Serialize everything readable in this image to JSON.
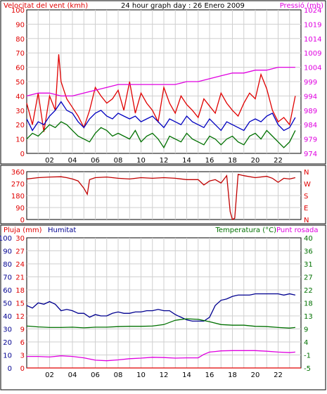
{
  "colors": {
    "background": "#ffffff",
    "plot_bg": "#ffffff",
    "grid": "#cfcfcf",
    "wind": "#e00000",
    "gust_avg": "#0000c0",
    "wind_avg": "#007000",
    "pressure": "#e000e0",
    "direction": "#c00000",
    "rain": "#e00000",
    "humidity": "#000090",
    "temperature": "#007000",
    "dewpoint": "#e000e0",
    "axis_left_red": "#e00000",
    "axis_right_magenta": "#e000e0",
    "axis_right_green": "#007000"
  },
  "chart_data": [
    {
      "id": "wind",
      "type": "line",
      "title": "24 hour graph day : 26 Enero 2009",
      "ylabel": "Velocitat del vent (kmh)",
      "ylabel2": "Pressió (mb)",
      "ylim": [
        0,
        100
      ],
      "y2lim": [
        974,
        1024
      ],
      "yticks": [
        "0",
        "10",
        "20",
        "30",
        "40",
        "50",
        "60",
        "70",
        "80",
        "90",
        "100"
      ],
      "y2ticks": [
        "974",
        "979",
        "984",
        "989",
        "994",
        "999",
        "1004",
        "1009",
        "1014",
        "1019",
        "1024"
      ],
      "xlim": [
        0,
        24
      ],
      "xticks": [
        "02",
        "04",
        "06",
        "08",
        "10",
        "12",
        "14",
        "16",
        "18",
        "20",
        "22"
      ],
      "grid": true,
      "series": [
        {
          "key": "wind",
          "color": "wind",
          "axis": "left",
          "x": [
            0,
            0.5,
            1,
            1.5,
            2,
            2.5,
            2.8,
            3,
            3.5,
            4,
            4.5,
            5,
            5.5,
            6,
            6.5,
            7,
            7.5,
            8,
            8.5,
            9,
            9.5,
            10,
            10.5,
            11,
            11.5,
            12,
            12.5,
            13,
            13.5,
            14,
            14.5,
            15,
            15.5,
            16,
            16.5,
            17,
            17.5,
            18,
            18.5,
            19,
            19.5,
            20,
            20.5,
            21,
            21.5,
            22,
            22.5,
            23,
            23.5
          ],
          "y": [
            35,
            20,
            42,
            15,
            40,
            30,
            69,
            50,
            38,
            32,
            26,
            18,
            30,
            46,
            40,
            35,
            38,
            44,
            30,
            50,
            28,
            42,
            35,
            30,
            22,
            46,
            35,
            28,
            40,
            34,
            30,
            25,
            38,
            33,
            28,
            42,
            35,
            30,
            26,
            35,
            42,
            38,
            55,
            45,
            30,
            22,
            25,
            20,
            40
          ]
        },
        {
          "key": "gust_avg",
          "color": "gust_avg",
          "axis": "left",
          "x": [
            0,
            0.5,
            1,
            1.5,
            2,
            2.5,
            3,
            3.5,
            4,
            4.5,
            5,
            5.5,
            6,
            6.5,
            7,
            7.5,
            8,
            8.5,
            9,
            9.5,
            10,
            10.5,
            11,
            11.5,
            12,
            12.5,
            13,
            13.5,
            14,
            14.5,
            15,
            15.5,
            16,
            16.5,
            17,
            17.5,
            18,
            18.5,
            19,
            19.5,
            20,
            20.5,
            21,
            21.5,
            22,
            22.5,
            23,
            23.5
          ],
          "y": [
            24,
            16,
            22,
            20,
            26,
            30,
            36,
            30,
            28,
            22,
            18,
            24,
            28,
            30,
            26,
            24,
            28,
            26,
            24,
            26,
            22,
            24,
            26,
            22,
            18,
            24,
            22,
            20,
            26,
            22,
            20,
            18,
            24,
            20,
            16,
            22,
            20,
            18,
            16,
            22,
            24,
            22,
            26,
            28,
            20,
            16,
            18,
            25
          ]
        },
        {
          "key": "wind_avg",
          "color": "wind_avg",
          "axis": "left",
          "x": [
            0,
            0.5,
            1,
            1.5,
            2,
            2.5,
            3,
            3.5,
            4,
            4.5,
            5,
            5.5,
            6,
            6.5,
            7,
            7.5,
            8,
            8.5,
            9,
            9.5,
            10,
            10.5,
            11,
            11.5,
            12,
            12.5,
            13,
            13.5,
            14,
            14.5,
            15,
            15.5,
            16,
            16.5,
            17,
            17.5,
            18,
            18.5,
            19,
            19.5,
            20,
            20.5,
            21,
            21.5,
            22,
            22.5,
            23,
            23.5
          ],
          "y": [
            10,
            14,
            12,
            16,
            20,
            18,
            22,
            20,
            16,
            12,
            10,
            8,
            14,
            18,
            16,
            12,
            14,
            12,
            10,
            16,
            8,
            12,
            14,
            10,
            4,
            12,
            10,
            8,
            14,
            10,
            8,
            6,
            12,
            10,
            6,
            10,
            12,
            8,
            6,
            12,
            14,
            10,
            16,
            12,
            8,
            4,
            8,
            16
          ]
        },
        {
          "key": "pressure",
          "color": "pressure",
          "axis": "right",
          "x": [
            0,
            1,
            2,
            3,
            4,
            5,
            6,
            7,
            8,
            9,
            10,
            11,
            12,
            13,
            14,
            15,
            16,
            17,
            18,
            19,
            20,
            21,
            22,
            23,
            23.5
          ],
          "y": [
            994,
            995,
            995,
            994,
            994,
            995,
            996,
            997,
            998,
            998,
            998,
            998,
            998,
            998,
            999,
            999,
            1000,
            1001,
            1002,
            1002,
            1003,
            1003,
            1004,
            1004,
            1004
          ]
        }
      ]
    },
    {
      "id": "direction",
      "type": "line",
      "ylim": [
        0,
        360
      ],
      "yticks": [
        "0",
        "90",
        "180",
        "270",
        "360"
      ],
      "y2ticks": [
        "N",
        "E",
        "S",
        "W",
        "N"
      ],
      "xlim": [
        0,
        24
      ],
      "grid": true,
      "series": [
        {
          "key": "direction",
          "color": "direction",
          "x": [
            0,
            1,
            2,
            3,
            3.5,
            4,
            4.5,
            5,
            5.3,
            5.5,
            6,
            7,
            8,
            9,
            10,
            11,
            12,
            13,
            14,
            15,
            15.5,
            16,
            16.5,
            17,
            17.5,
            17.8,
            18,
            18.2,
            18.5,
            19,
            20,
            21,
            21.5,
            22,
            22.5,
            23,
            23.5
          ],
          "y": [
            305,
            315,
            320,
            322,
            315,
            305,
            290,
            235,
            190,
            300,
            315,
            320,
            310,
            305,
            315,
            310,
            315,
            310,
            300,
            300,
            260,
            290,
            300,
            275,
            330,
            60,
            0,
            10,
            340,
            330,
            315,
            325,
            310,
            280,
            310,
            305,
            315
          ]
        }
      ]
    },
    {
      "id": "rain_temp",
      "type": "line",
      "ylabel": "Pluja (mm)",
      "ylabel_hum": "Humitat",
      "ylabel2": "Temperatura (°C)",
      "ylabel3": "Punt rosada",
      "ylim": [
        0,
        30
      ],
      "yticks": [
        "0",
        "3",
        "6",
        "9",
        "12",
        "15",
        "18",
        "21",
        "24",
        "27",
        "30"
      ],
      "yticks_hum": [
        "0",
        "10",
        "20",
        "30",
        "40",
        "50",
        "60",
        "70",
        "80",
        "90",
        "100"
      ],
      "y2lim": [
        -5,
        40
      ],
      "y2ticks": [
        "-5",
        "-1",
        "4",
        "9",
        "13",
        "18",
        "22",
        "27",
        "31",
        "36",
        "40"
      ],
      "xlim": [
        0,
        24
      ],
      "xticks": [
        "02",
        "04",
        "06",
        "08",
        "10",
        "12",
        "14",
        "16",
        "18",
        "20",
        "22"
      ],
      "grid": true,
      "series": [
        {
          "key": "rain",
          "color": "rain",
          "axis": "left",
          "x": [
            0,
            24
          ],
          "y": [
            0,
            0
          ]
        },
        {
          "key": "humidity",
          "color": "humidity",
          "axis": "hum",
          "x": [
            0,
            0.5,
            1,
            1.5,
            2,
            2.5,
            3,
            3.5,
            4,
            4.5,
            5,
            5.5,
            6,
            6.5,
            7,
            7.5,
            8,
            8.5,
            9,
            9.5,
            10,
            10.5,
            11,
            11.5,
            12,
            12.5,
            13,
            13.5,
            14,
            14.5,
            15,
            15.5,
            16,
            16.5,
            17,
            17.5,
            18,
            18.5,
            19,
            19.5,
            20,
            20.5,
            21,
            21.5,
            22,
            22.5,
            23,
            23.5
          ],
          "y": [
            48,
            46,
            50,
            49,
            51,
            49,
            44,
            45,
            44,
            42,
            42,
            39,
            41,
            40,
            40,
            42,
            43,
            42,
            42,
            43,
            43,
            44,
            44,
            45,
            44,
            44,
            41,
            39,
            37,
            36,
            36,
            36,
            39,
            48,
            52,
            53,
            55,
            56,
            56,
            56,
            57,
            57,
            57,
            57,
            57,
            56,
            57,
            56
          ]
        },
        {
          "key": "temperature",
          "color": "temperature",
          "axis": "right",
          "x": [
            0,
            1,
            2,
            3,
            4,
            5,
            6,
            7,
            8,
            9,
            10,
            11,
            12,
            13,
            14,
            15,
            16,
            17,
            18,
            19,
            20,
            21,
            22,
            23,
            23.5
          ],
          "y": [
            9.5,
            9.2,
            9.0,
            9.0,
            9.1,
            8.9,
            9.1,
            9.1,
            9.3,
            9.4,
            9.4,
            9.5,
            10.0,
            11.5,
            12.0,
            11.8,
            11.0,
            10.0,
            9.8,
            9.8,
            9.4,
            9.3,
            9.0,
            8.8,
            9.0
          ]
        },
        {
          "key": "dewpoint",
          "color": "dewpoint",
          "axis": "right",
          "x": [
            0,
            1,
            2,
            3,
            4,
            5,
            6,
            7,
            8,
            9,
            10,
            11,
            12,
            13,
            14,
            15,
            15.5,
            16,
            16.5,
            17,
            18,
            19,
            20,
            21,
            22,
            23,
            23.5
          ],
          "y": [
            -1.0,
            -1.0,
            -1.2,
            -0.8,
            -1.0,
            -1.5,
            -2.3,
            -2.5,
            -2.2,
            -1.8,
            -1.6,
            -1.3,
            -1.4,
            -1.6,
            -1.5,
            -1.5,
            -0.3,
            0.5,
            0.7,
            0.9,
            1.0,
            1.0,
            1.0,
            0.8,
            0.5,
            0.3,
            0.5
          ]
        }
      ]
    }
  ]
}
